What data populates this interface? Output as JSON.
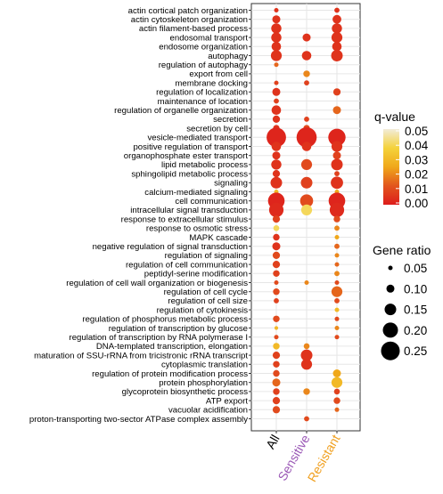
{
  "chart_data": {
    "type": "scatter",
    "title": "",
    "xlabel": "",
    "ylabel": "",
    "x_categories": [
      {
        "label": "All",
        "color": "#000000"
      },
      {
        "label": "Sensitive",
        "color": "#9b59b6"
      },
      {
        "label": "Resistant",
        "color": "#f0a020"
      }
    ],
    "terms": [
      "actin cortical patch organization",
      "actin cytoskeleton organization",
      "actin filament-based process",
      "endosomal transport",
      "endosome organization",
      "autophagy",
      "regulation of autophagy",
      "export from cell",
      "membrane docking",
      "regulation of localization",
      "maintenance of location",
      "regulation of organelle organization",
      "secretion",
      "secretion by cell",
      "vesicle-mediated transport",
      "positive regulation of transport",
      "organophosphate ester transport",
      "lipid metabolic process",
      "sphingolipid metabolic process",
      "signaling",
      "calcium-mediated signaling",
      "cell communication",
      "intracellular signal transduction",
      "response to extracellular stimulus",
      "response to osmotic stress",
      "MAPK cascade",
      "negative regulation of signal transduction",
      "regulation of signaling",
      "regulation of cell communication",
      "peptidyl-serine modification",
      "regulation of cell wall organization or biogenesis",
      "regulation of cell cycle",
      "regulation of cell size",
      "regulation of cytokinesis",
      "regulation of phosphorus metabolic process",
      "regulation of transcription by glucose",
      "regulation of transcription by RNA polymerase I",
      "DNA-templated transcription, elongation",
      "maturation of SSU-rRNA from tricistronic rRNA transcript",
      "cytoplasmic translation",
      "regulation of protein modification process",
      "protein phosphorylation",
      "glycoprotein biosynthetic process",
      "ATP export",
      "vacuolar acidification",
      "proton-transporting two-sector ATPase complex assembly"
    ],
    "points_note": "each point: [term_index, category_index, q_value, gene_ratio]",
    "points": [
      [
        0,
        0,
        0.005,
        0.05
      ],
      [
        0,
        2,
        0.005,
        0.06
      ],
      [
        1,
        0,
        0.005,
        0.1
      ],
      [
        1,
        2,
        0.005,
        0.11
      ],
      [
        2,
        0,
        0.005,
        0.13
      ],
      [
        2,
        2,
        0.005,
        0.13
      ],
      [
        3,
        0,
        0.005,
        0.13
      ],
      [
        3,
        1,
        0.005,
        0.1
      ],
      [
        3,
        2,
        0.005,
        0.14
      ],
      [
        4,
        0,
        0.005,
        0.12
      ],
      [
        4,
        2,
        0.005,
        0.12
      ],
      [
        5,
        0,
        0.005,
        0.14
      ],
      [
        5,
        1,
        0.005,
        0.12
      ],
      [
        5,
        2,
        0.005,
        0.15
      ],
      [
        6,
        0,
        0.015,
        0.05
      ],
      [
        7,
        1,
        0.02,
        0.08
      ],
      [
        8,
        0,
        0.008,
        0.05
      ],
      [
        8,
        1,
        0.008,
        0.06
      ],
      [
        9,
        0,
        0.005,
        0.1
      ],
      [
        9,
        2,
        0.008,
        0.09
      ],
      [
        10,
        0,
        0.008,
        0.06
      ],
      [
        11,
        0,
        0.005,
        0.12
      ],
      [
        11,
        2,
        0.015,
        0.1
      ],
      [
        12,
        0,
        0.005,
        0.09
      ],
      [
        12,
        1,
        0.008,
        0.06
      ],
      [
        13,
        0,
        0.005,
        0.08
      ],
      [
        13,
        1,
        0.01,
        0.08
      ],
      [
        14,
        0,
        0.002,
        0.26
      ],
      [
        14,
        1,
        0.002,
        0.27
      ],
      [
        14,
        2,
        0.002,
        0.23
      ],
      [
        15,
        0,
        0.005,
        0.12
      ],
      [
        15,
        1,
        0.005,
        0.12
      ],
      [
        15,
        2,
        0.005,
        0.14
      ],
      [
        16,
        0,
        0.005,
        0.1
      ],
      [
        16,
        2,
        0.008,
        0.1
      ],
      [
        17,
        0,
        0.005,
        0.13
      ],
      [
        17,
        1,
        0.01,
        0.14
      ],
      [
        17,
        2,
        0.005,
        0.15
      ],
      [
        18,
        0,
        0.005,
        0.09
      ],
      [
        18,
        2,
        0.008,
        0.06
      ],
      [
        19,
        0,
        0.005,
        0.15
      ],
      [
        19,
        1,
        0.008,
        0.15
      ],
      [
        19,
        2,
        0.005,
        0.16
      ],
      [
        20,
        0,
        0.03,
        0.05
      ],
      [
        20,
        2,
        0.025,
        0.05
      ],
      [
        21,
        0,
        0.002,
        0.22
      ],
      [
        21,
        1,
        0.01,
        0.17
      ],
      [
        21,
        2,
        0.002,
        0.22
      ],
      [
        22,
        0,
        0.003,
        0.19
      ],
      [
        22,
        1,
        0.04,
        0.14
      ],
      [
        22,
        2,
        0.003,
        0.19
      ],
      [
        23,
        0,
        0.008,
        0.09
      ],
      [
        23,
        2,
        0.01,
        0.08
      ],
      [
        24,
        0,
        0.04,
        0.07
      ],
      [
        24,
        2,
        0.02,
        0.06
      ],
      [
        25,
        0,
        0.005,
        0.08
      ],
      [
        25,
        2,
        0.025,
        0.05
      ],
      [
        26,
        0,
        0.005,
        0.1
      ],
      [
        26,
        2,
        0.015,
        0.06
      ],
      [
        27,
        0,
        0.01,
        0.09
      ],
      [
        27,
        2,
        0.02,
        0.05
      ],
      [
        28,
        0,
        0.008,
        0.09
      ],
      [
        28,
        2,
        0.015,
        0.05
      ],
      [
        29,
        0,
        0.008,
        0.08
      ],
      [
        29,
        2,
        0.02,
        0.06
      ],
      [
        30,
        0,
        0.01,
        0.05
      ],
      [
        30,
        1,
        0.02,
        0.05
      ],
      [
        30,
        2,
        0.01,
        0.05
      ],
      [
        31,
        0,
        0.01,
        0.08
      ],
      [
        31,
        2,
        0.015,
        0.14
      ],
      [
        32,
        0,
        0.008,
        0.06
      ],
      [
        32,
        2,
        0.01,
        0.06
      ],
      [
        33,
        2,
        0.03,
        0.05
      ],
      [
        34,
        0,
        0.01,
        0.08
      ],
      [
        34,
        2,
        0.01,
        0.05
      ],
      [
        35,
        0,
        0.03,
        0.04
      ],
      [
        35,
        2,
        0.02,
        0.05
      ],
      [
        36,
        0,
        0.01,
        0.05
      ],
      [
        36,
        2,
        0.01,
        0.05
      ],
      [
        37,
        0,
        0.03,
        0.08
      ],
      [
        37,
        1,
        0.02,
        0.07
      ],
      [
        38,
        0,
        0.008,
        0.09
      ],
      [
        38,
        1,
        0.005,
        0.15
      ],
      [
        39,
        0,
        0.008,
        0.08
      ],
      [
        39,
        1,
        0.005,
        0.14
      ],
      [
        40,
        0,
        0.01,
        0.08
      ],
      [
        40,
        2,
        0.025,
        0.1
      ],
      [
        41,
        0,
        0.015,
        0.1
      ],
      [
        41,
        2,
        0.03,
        0.14
      ],
      [
        42,
        0,
        0.008,
        0.08
      ],
      [
        42,
        1,
        0.02,
        0.08
      ],
      [
        42,
        2,
        0.008,
        0.07
      ],
      [
        43,
        0,
        0.008,
        0.09
      ],
      [
        43,
        2,
        0.01,
        0.08
      ],
      [
        44,
        0,
        0.01,
        0.09
      ],
      [
        44,
        2,
        0.015,
        0.05
      ],
      [
        45,
        1,
        0.01,
        0.06
      ]
    ],
    "color_legend": {
      "title": "q-value",
      "ticks": [
        "0.05",
        "0.04",
        "0.03",
        "0.02",
        "0.01",
        "0.00"
      ],
      "range": [
        0,
        0.05
      ],
      "colors": [
        "#dd1c1c",
        "#e2561d",
        "#f0a81a",
        "#f4d23b",
        "#f2ecd9"
      ]
    },
    "size_legend": {
      "title": "Gene ratio",
      "labels": [
        "0.05",
        "0.10",
        "0.15",
        "0.20",
        "0.25"
      ],
      "values": [
        0.05,
        0.1,
        0.15,
        0.2,
        0.25
      ]
    },
    "grid": true,
    "panel_background": "#ffffff",
    "grid_color": "#e6e6e6"
  }
}
